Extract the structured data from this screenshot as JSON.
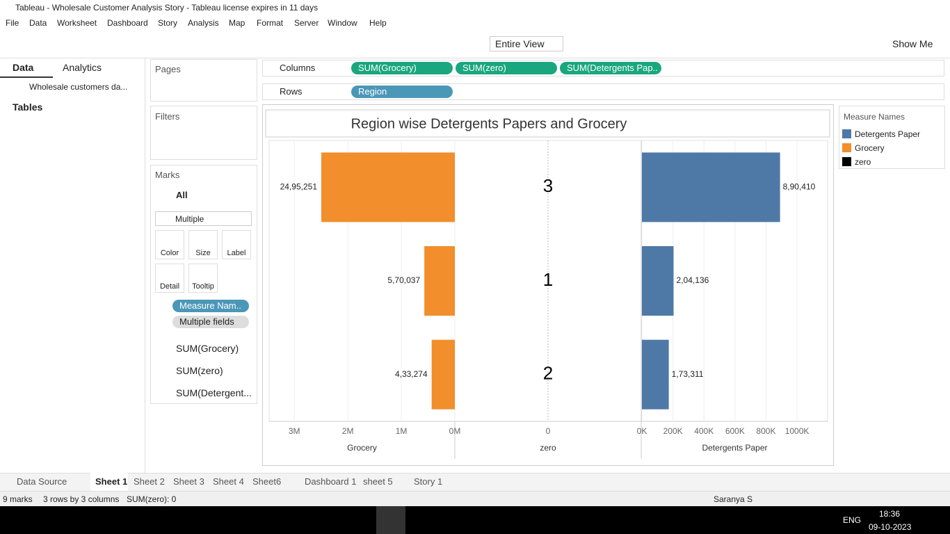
{
  "window": {
    "title": "Tableau - Wholesale Customer Analysis Story - Tableau license expires in 11 days"
  },
  "menu": [
    "File",
    "Data",
    "Worksheet",
    "Dashboard",
    "Story",
    "Analysis",
    "Map",
    "Format",
    "Server",
    "Window",
    "Help"
  ],
  "toolbar": {
    "fit": "Entire View",
    "show_me": "Show Me"
  },
  "side_panel": {
    "tabs": [
      "Data",
      "Analytics"
    ],
    "data_source": "Wholesale customers da...",
    "tables": "Tables"
  },
  "cards": {
    "pages": "Pages",
    "filters": "Filters",
    "marks": {
      "title": "Marks",
      "all": "All",
      "mark_type": "Multiple",
      "buttons": [
        "Color",
        "Size",
        "Label",
        "Detail",
        "Tooltip"
      ],
      "pills": [
        "Measure Nam..",
        "Multiple fields"
      ],
      "measures": [
        "SUM(Grocery)",
        "SUM(zero)",
        "SUM(Detergent..."
      ]
    }
  },
  "shelves": {
    "columns": {
      "label": "Columns",
      "pills": [
        "SUM(Grocery)",
        "SUM(zero)",
        "SUM(Detergents Pap.."
      ]
    },
    "rows": {
      "label": "Rows",
      "pills": [
        "Region"
      ]
    }
  },
  "chart_data": {
    "type": "bar",
    "title": "Region wise Detergents Papers and Grocery",
    "legend_title": "Measure Names",
    "categories": [
      "3",
      "1",
      "2"
    ],
    "series": [
      {
        "name": "Detergents Paper",
        "color": "#4e79a7",
        "mark": "bar",
        "values": [
          890410,
          204136,
          173311
        ],
        "value_labels": [
          "8,90,410",
          "2,04,136",
          "1,73,311"
        ],
        "axis_title": "Detergents Paper",
        "xlim": [
          0,
          1197000
        ],
        "xticks": [
          {
            "value": 0,
            "label": "0K"
          },
          {
            "value": 200000,
            "label": "200K"
          },
          {
            "value": 400000,
            "label": "400K"
          },
          {
            "value": 600000,
            "label": "600K"
          },
          {
            "value": 800000,
            "label": "800K"
          },
          {
            "value": 1000000,
            "label": "1000K"
          }
        ]
      },
      {
        "name": "Grocery",
        "color": "#f28e2b",
        "mark": "bar",
        "x_reversed": true,
        "values": [
          2495251,
          570037,
          433274
        ],
        "value_labels": [
          "24,95,251",
          "5,70,037",
          "4,33,274"
        ],
        "axis_title": "Grocery",
        "xlim": [
          0,
          3470000
        ],
        "xticks": [
          {
            "value": 3000000,
            "label": "3M"
          },
          {
            "value": 2000000,
            "label": "2M"
          },
          {
            "value": 1000000,
            "label": "1M"
          },
          {
            "value": 0,
            "label": "0M"
          }
        ]
      },
      {
        "name": "zero",
        "color": "#000000",
        "mark": "text",
        "values": [
          0,
          0,
          0
        ],
        "axis_title": "zero",
        "xlim": [
          -1,
          1
        ],
        "xticks": [
          0
        ]
      }
    ]
  },
  "sheet_tabs": [
    "Data Source",
    "Sheet 1",
    "Sheet 2",
    "Sheet 3",
    "Sheet 4",
    "Sheet6",
    "Dashboard 1",
    "sheet 5",
    "Story 1"
  ],
  "status": {
    "marks": "9 marks",
    "shape": "3 rows by 3 columns",
    "sum": "SUM(zero): 0",
    "user": "Saranya S"
  },
  "taskbar": {
    "language": "ENG",
    "time": "18:36",
    "date": "09-10-2023"
  }
}
